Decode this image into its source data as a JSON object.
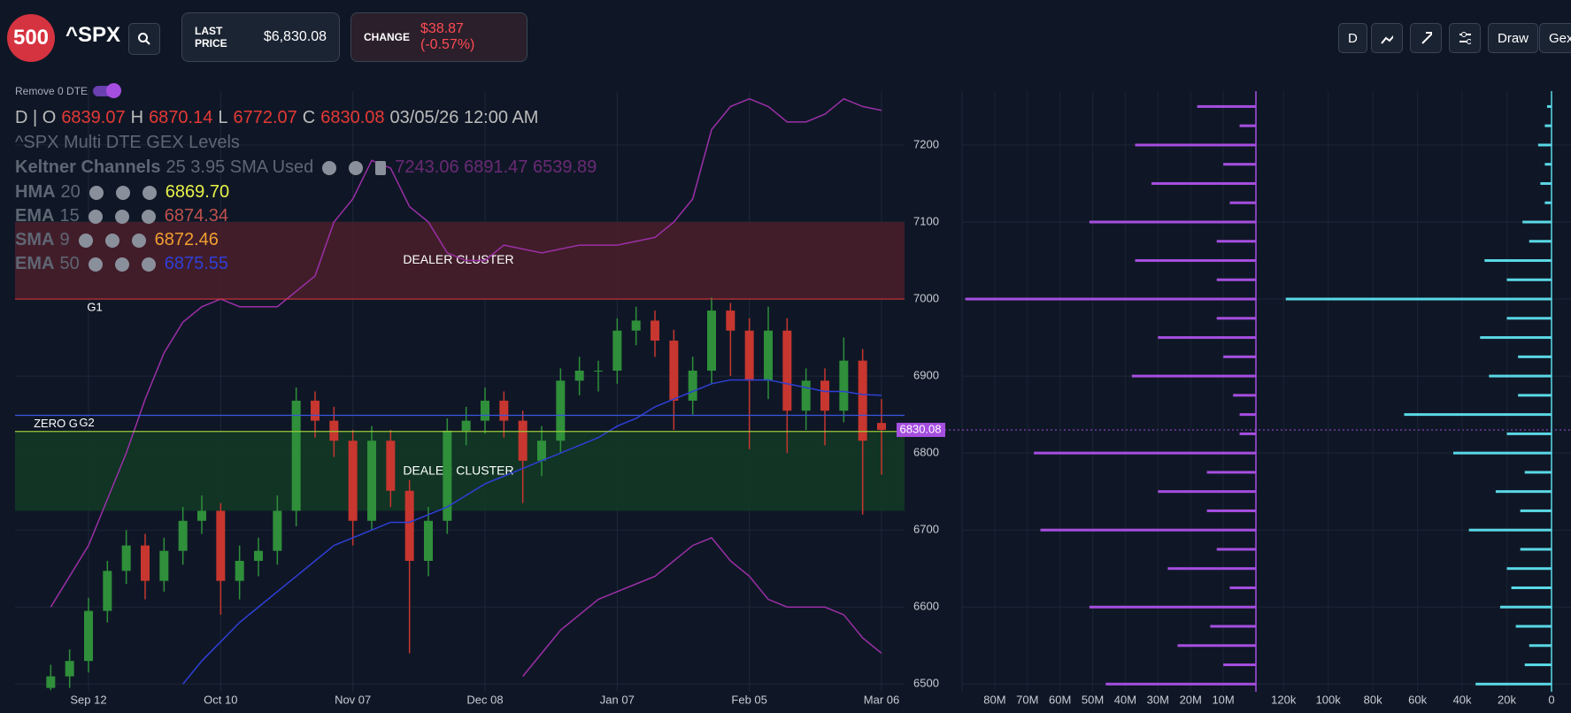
{
  "header": {
    "logo": "500",
    "symbol": "^SPX",
    "last_price_label": "LAST PRICE",
    "last_price": "$6,830.08",
    "change_label": "CHANGE",
    "change": "$38.87 (-0.57%)",
    "buttons": [
      "D",
      "Draw",
      "Gex"
    ],
    "toggle": "Remove 0 DTE"
  },
  "legend": {
    "ohlc": {
      "prefix": "D | O",
      "open": "6839.07",
      "high_label": "H",
      "high": "6870.14",
      "low_label": "L",
      "low": "6772.07",
      "close_label": "C",
      "close": "6830.08",
      "time": "03/05/26 12:00 AM"
    },
    "study": "^SPX Multi DTE GEX Levels",
    "keltner": {
      "name": "Keltner Channels",
      "params": "25 3.95 SMA Used",
      "values": "7243.06 6891.47 6539.89"
    },
    "mas": [
      {
        "name": "HMA",
        "period": "20",
        "value": "6869.70",
        "color": "#e8f04a"
      },
      {
        "name": "EMA",
        "period": "15",
        "value": "6874.34",
        "color": "#c0504d"
      },
      {
        "name": "SMA",
        "period": "9",
        "value": "6872.46",
        "color": "#f0a030"
      },
      {
        "name": "EMA",
        "period": "50",
        "value": "6875.55",
        "color": "#2f3fd6"
      }
    ]
  },
  "chart_data": [
    {
      "type": "candlestick",
      "categories": [
        null,
        null,
        "Sep 12",
        null,
        null,
        null,
        null,
        null,
        null,
        "Oct 10",
        null,
        null,
        null,
        null,
        null,
        null,
        "Nov 07",
        null,
        null,
        null,
        null,
        null,
        null,
        "Dec 08",
        null,
        null,
        null,
        null,
        null,
        null,
        "Jan 07",
        null,
        null,
        null,
        null,
        null,
        null,
        "Feb 05",
        null,
        null,
        null,
        null,
        null,
        null,
        "Mar 06"
      ],
      "candles": {
        "up_color": "#2f8f3a",
        "down_color": "#c7362f",
        "open": [
          6495,
          6510,
          6530,
          6595,
          6647,
          6680,
          6634,
          6673,
          6712,
          6725,
          6634,
          6660,
          6673,
          6725,
          6868,
          6842,
          6816,
          6712,
          6816,
          6751,
          6660,
          6712,
          6829,
          6842,
          6868,
          6842,
          6790,
          6816,
          6894,
          6907,
          6907,
          6959,
          6972,
          6946,
          6868,
          6907,
          6985,
          6959,
          6894,
          6959,
          6855,
          6894,
          6855,
          6920,
          6839.07
        ],
        "high": [
          6525,
          6545,
          6612,
          6660,
          6700,
          6695,
          6690,
          6730,
          6745,
          6735,
          6680,
          6690,
          6745,
          6885,
          6880,
          6860,
          6830,
          6835,
          6830,
          6765,
          6730,
          6845,
          6860,
          6885,
          6880,
          6855,
          6835,
          6910,
          6925,
          6920,
          6975,
          6990,
          6985,
          6960,
          6925,
          7002,
          6995,
          6975,
          6990,
          6975,
          6910,
          6910,
          6950,
          6935,
          6870.14
        ],
        "low": [
          6492,
          6495,
          6515,
          6580,
          6630,
          6610,
          6620,
          6655,
          6695,
          6590,
          6610,
          6640,
          6655,
          6705,
          6820,
          6795,
          6680,
          6700,
          6730,
          6540,
          6640,
          6695,
          6810,
          6825,
          6820,
          6735,
          6770,
          6800,
          6875,
          6880,
          6890,
          6940,
          6925,
          6830,
          6850,
          6890,
          6900,
          6805,
          6870,
          6800,
          6830,
          6810,
          6840,
          6720,
          6772.07
        ],
        "close": [
          6510,
          6530,
          6595,
          6647,
          6680,
          6634,
          6673,
          6712,
          6725,
          6634,
          6660,
          6673,
          6725,
          6868,
          6842,
          6816,
          6712,
          6816,
          6751,
          6660,
          6712,
          6829,
          6842,
          6868,
          6842,
          6790,
          6816,
          6894,
          6907,
          6907,
          6959,
          6972,
          6946,
          6868,
          6907,
          6985,
          6959,
          6894,
          6959,
          6855,
          6894,
          6855,
          6920,
          6816,
          6830.08
        ]
      },
      "series": [
        {
          "color": "#9b2fa6",
          "values": [
            6600,
            6640,
            6680,
            6740,
            6800,
            6870,
            6930,
            6970,
            6990,
            7000,
            6990,
            6990,
            6990,
            7010,
            7030,
            7100,
            7130,
            7180,
            7170,
            7120,
            7100,
            7060,
            7050,
            7050,
            7070,
            7065,
            7060,
            7065,
            7070,
            7070,
            7070,
            7075,
            7080,
            7100,
            7130,
            7220,
            7250,
            7260,
            7250,
            7230,
            7230,
            7240,
            7260,
            7250,
            7245
          ]
        },
        {
          "color": "#9b2fa6",
          "values": [
            null,
            null,
            null,
            null,
            null,
            null,
            null,
            null,
            null,
            null,
            null,
            null,
            null,
            null,
            null,
            null,
            null,
            null,
            null,
            null,
            null,
            null,
            null,
            null,
            null,
            6510,
            6540,
            6570,
            6590,
            6610,
            6620,
            6630,
            6640,
            6660,
            6680,
            6690,
            6660,
            6640,
            6610,
            6600,
            6600,
            6600,
            6590,
            6560,
            6540
          ]
        },
        {
          "color": "#2f3fd6",
          "values": [
            null,
            null,
            null,
            null,
            null,
            null,
            null,
            6500,
            6530,
            6555,
            6580,
            6600,
            6620,
            6640,
            6660,
            6680,
            6690,
            6700,
            6710,
            6710,
            6720,
            6730,
            6745,
            6760,
            6770,
            6780,
            6790,
            6800,
            6810,
            6820,
            6835,
            6845,
            6860,
            6870,
            6880,
            6890,
            6895,
            6895,
            6895,
            6890,
            6885,
            6880,
            6880,
            6876,
            6875
          ]
        }
      ],
      "zones": [
        {
          "label": "DEALER CLUSTER",
          "from": 7000,
          "to": 7100,
          "color": "#4a1e2c"
        },
        {
          "label": "DEALER CLUSTER",
          "from": 6725,
          "to": 6828,
          "color": "#123a26"
        }
      ],
      "levels": [
        {
          "label": "G1",
          "value": 7000,
          "color": "#d0343a"
        },
        {
          "label": "ZERO G",
          "value": 6849,
          "color": "#3a55e0"
        },
        {
          "label": "G2",
          "value": 6828,
          "color": "#9ccc3a"
        }
      ],
      "last_price": 6830.08,
      "ylim": [
        6490,
        7270
      ],
      "yticks": [
        6500,
        6600,
        6700,
        6800,
        6900,
        7000,
        7100,
        7200
      ],
      "grid": true
    },
    {
      "type": "hbar",
      "color": "#a64ee0",
      "y": [
        7250,
        7225,
        7200,
        7175,
        7150,
        7125,
        7100,
        7075,
        7050,
        7025,
        7000,
        6975,
        6950,
        6925,
        6900,
        6875,
        6850,
        6825,
        6800,
        6775,
        6750,
        6725,
        6700,
        6675,
        6650,
        6625,
        6600,
        6575,
        6550,
        6525,
        6500
      ],
      "values": [
        18000000,
        5000000,
        37000000,
        10000000,
        32000000,
        8000000,
        51000000,
        12000000,
        37000000,
        12000000,
        89000000,
        12000000,
        30000000,
        10000000,
        38000000,
        7000000,
        5000000,
        5000000,
        68000000,
        15000000,
        30000000,
        15000000,
        66000000,
        12000000,
        27000000,
        8000000,
        51000000,
        14000000,
        24000000,
        10000000,
        46000000
      ],
      "xlim": [
        0,
        90000000
      ],
      "xticks": [
        {
          "value": 80000000,
          "label": "80M"
        },
        {
          "value": 70000000,
          "label": "70M"
        },
        {
          "value": 60000000,
          "label": "60M"
        },
        {
          "value": 50000000,
          "label": "50M"
        },
        {
          "value": 40000000,
          "label": "40M"
        },
        {
          "value": 30000000,
          "label": "30M"
        },
        {
          "value": 20000000,
          "label": "20M"
        },
        {
          "value": 10000000,
          "label": "10M"
        }
      ],
      "ylim": [
        6490,
        7270
      ]
    },
    {
      "type": "hbar",
      "color": "#5ad8e6",
      "y": [
        7250,
        7225,
        7200,
        7175,
        7150,
        7125,
        7100,
        7075,
        7050,
        7025,
        7000,
        6975,
        6950,
        6925,
        6900,
        6875,
        6850,
        6825,
        6800,
        6775,
        6750,
        6725,
        6700,
        6675,
        6650,
        6625,
        6600,
        6575,
        6550,
        6525,
        6500
      ],
      "values": [
        2000,
        3000,
        6000,
        3000,
        5000,
        3000,
        13000,
        10000,
        30000,
        20000,
        119000,
        20000,
        32000,
        15000,
        28000,
        15000,
        66000,
        20000,
        44000,
        12000,
        25000,
        14000,
        37000,
        14000,
        20000,
        18000,
        23000,
        16000,
        10000,
        12000,
        34000
      ],
      "xlim": [
        0,
        130000
      ],
      "xticks": [
        {
          "value": 120000,
          "label": "120k"
        },
        {
          "value": 100000,
          "label": "100k"
        },
        {
          "value": 80000,
          "label": "80k"
        },
        {
          "value": 60000,
          "label": "60k"
        },
        {
          "value": 40000,
          "label": "40k"
        },
        {
          "value": 20000,
          "label": "20k"
        },
        0
      ],
      "ylim": [
        6490,
        7270
      ]
    }
  ]
}
